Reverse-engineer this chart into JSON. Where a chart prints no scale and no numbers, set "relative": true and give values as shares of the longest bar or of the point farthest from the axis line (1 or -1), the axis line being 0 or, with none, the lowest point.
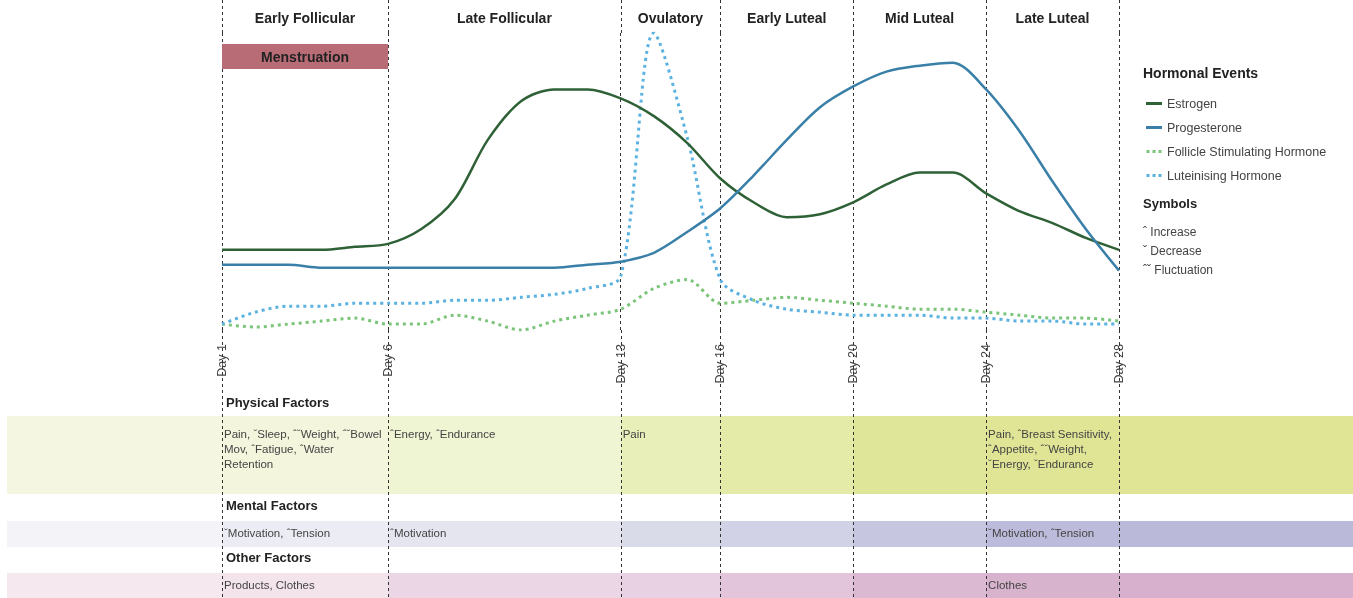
{
  "chart_data": {
    "type": "line",
    "relative": true,
    "legend_title": "Hormonal Events",
    "legend": "right",
    "marker": "none",
    "grid": "x",
    "categories": [
      "Day 1",
      null,
      null,
      null,
      null,
      "Day 6",
      null,
      null,
      null,
      null,
      null,
      null,
      "Day 13",
      null,
      null,
      "Day 16",
      null,
      null,
      null,
      "Day 20",
      null,
      null,
      null,
      "Day 24",
      null,
      null,
      null,
      "Day 28"
    ],
    "bands": [
      {
        "axis": "x",
        "from": "Day 1",
        "to": "Day 6",
        "label": "Menstruation",
        "color": "#b86c75"
      }
    ],
    "series": [
      {
        "name": "Estrogen",
        "color": "#2f6136",
        "line_style": "solid",
        "values": [
          0.27,
          0.27,
          0.27,
          0.27,
          0.28,
          0.29,
          0.34,
          0.44,
          0.64,
          0.77,
          0.81,
          0.81,
          0.78,
          0.72,
          0.63,
          0.51,
          0.43,
          0.38,
          0.39,
          0.43,
          0.49,
          0.53,
          0.53,
          0.46,
          0.4,
          0.36,
          0.31,
          0.27
        ]
      },
      {
        "name": "Progesterone",
        "color": "#3a7fa8",
        "line_style": "solid",
        "values": [
          0.22,
          0.22,
          0.22,
          0.21,
          0.21,
          0.21,
          0.21,
          0.21,
          0.21,
          0.21,
          0.21,
          0.22,
          0.23,
          0.26,
          0.33,
          0.41,
          0.52,
          0.64,
          0.75,
          0.82,
          0.87,
          0.89,
          0.9,
          0.81,
          0.67,
          0.5,
          0.34,
          0.2
        ]
      },
      {
        "name": "Follicle Stimulating Hormone",
        "color": "#7cc47a",
        "line_style": "dotted",
        "values": [
          0.02,
          0.01,
          0.02,
          0.03,
          0.04,
          0.02,
          0.02,
          0.05,
          0.03,
          0,
          0.03,
          0.05,
          0.07,
          0.14,
          0.17,
          0.09,
          0.1,
          0.11,
          0.1,
          0.09,
          0.08,
          0.07,
          0.07,
          0.06,
          0.05,
          0.04,
          0.04,
          0.03
        ]
      },
      {
        "name": "Luteinising Hormone",
        "color": "#5bb2e0",
        "line_style": "dotted",
        "values": [
          0.02,
          0.06,
          0.08,
          0.08,
          0.09,
          0.09,
          0.09,
          0.1,
          0.1,
          0.11,
          0.12,
          0.14,
          0.18,
          1,
          0.65,
          0.17,
          0.1,
          0.07,
          0.06,
          0.05,
          0.05,
          0.05,
          0.04,
          0.04,
          0.03,
          0.03,
          0.02,
          0.02
        ]
      }
    ],
    "annotations": [
      "Early Follicular",
      "Late Follicular",
      "Ovulatory",
      "Early Luteal",
      "Mid Luteal",
      "Late Luteal",
      "Symbols",
      "ˆ  Increase",
      "ˇ  Decrease",
      "ˆˇ  Fluctuation",
      "Physical Factors",
      "Pain, ˇSleep, ˆˇWeight, ˆˇBowel Mov, ˆFatigue, ˆWater Retention",
      "ˆEnergy, ˆEndurance",
      "Pain",
      "Pain, ˆBreast Sensitivity, ˆAppetite, ˆˇWeight, ˇEnergy, ˇEndurance",
      "Mental Factors",
      "ˇMotivation,  ˆTension",
      "ˆMotivation",
      "ˇMotivation, ˆTension",
      "Other Factors",
      "Products, Clothes",
      "Clothes"
    ]
  }
}
